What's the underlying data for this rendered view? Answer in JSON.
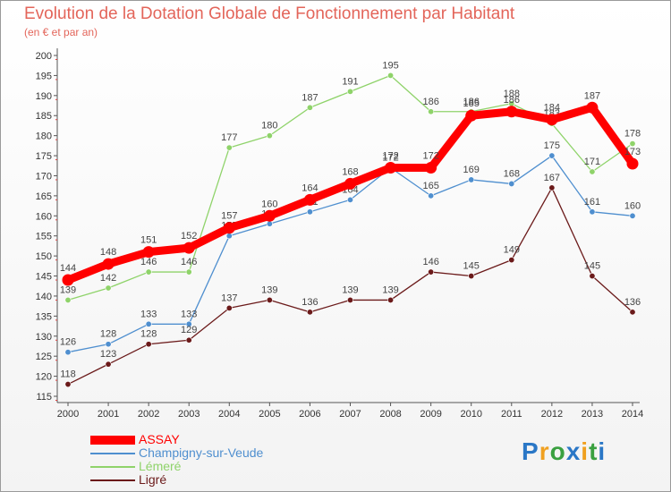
{
  "header": {
    "title": "Evolution de la Dotation Globale de Fonctionnement par Habitant",
    "subtitle": "(en € et par an)"
  },
  "chart_data": {
    "type": "line",
    "title": "Evolution de la Dotation Globale de Fonctionnement par Habitant",
    "subtitle": "(en € et par an)",
    "xlabel": "",
    "ylabel": "",
    "ylim": [
      115,
      200
    ],
    "ytick_step": 5,
    "grid": false,
    "legend_position": "bottom-left",
    "x": [
      "2000",
      "2001",
      "2002",
      "2003",
      "2004",
      "2005",
      "2006",
      "2007",
      "2008",
      "2009",
      "2010",
      "2011",
      "2012",
      "2013",
      "2014"
    ],
    "series": [
      {
        "name": "ASSAY",
        "color": "#ff0000",
        "values": [
          144,
          148,
          151,
          152,
          157,
          160,
          164,
          168,
          172,
          172,
          185,
          186,
          184,
          187,
          173
        ]
      },
      {
        "name": "Champigny-sur-Veude",
        "color": "#4f8fcf",
        "values": [
          126,
          128,
          133,
          133,
          155,
          158,
          161,
          164,
          172,
          165,
          169,
          168,
          175,
          161,
          160
        ]
      },
      {
        "name": "Lémeré",
        "color": "#8fd36a",
        "values": [
          139,
          142,
          146,
          146,
          177,
          180,
          187,
          191,
          195,
          186,
          186,
          188,
          183,
          171,
          178
        ]
      },
      {
        "name": "Ligré",
        "color": "#6b1a1a",
        "values": [
          118,
          123,
          128,
          129,
          137,
          139,
          136,
          139,
          139,
          146,
          145,
          149,
          167,
          145,
          136
        ]
      }
    ]
  },
  "brand": {
    "letters": [
      "P",
      "r",
      "o",
      "x",
      "i",
      "t",
      "i"
    ],
    "colors": [
      "#2a77c6",
      "#f0a020",
      "#3aa040",
      "#2a77c6",
      "#f0a020",
      "#3aa040",
      "#2a77c6"
    ]
  }
}
